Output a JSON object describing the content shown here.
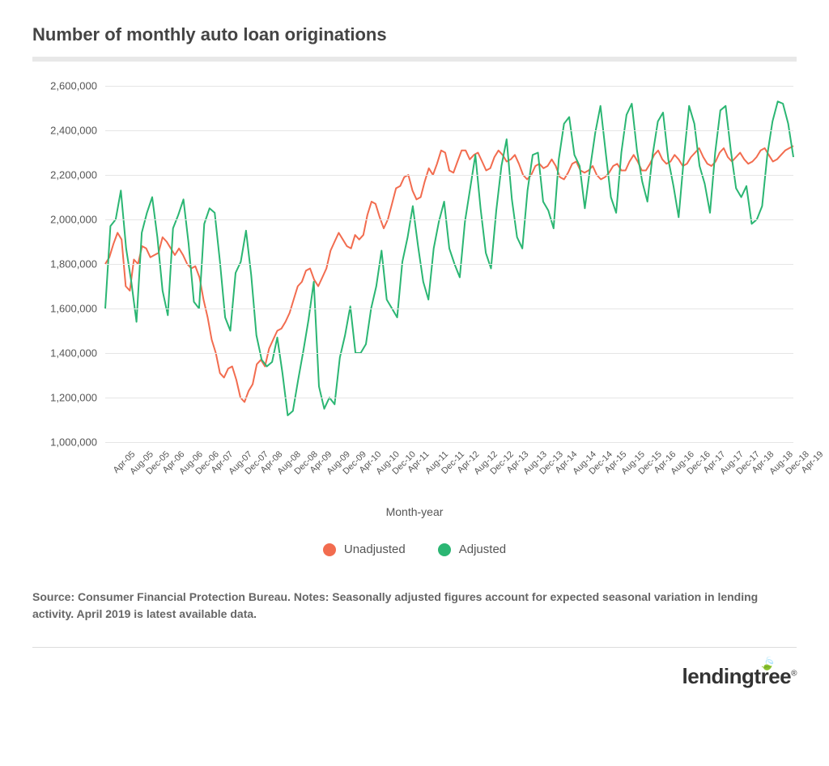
{
  "title": "Number of monthly auto loan originations",
  "chart": {
    "type": "line",
    "xlabel": "Month-year",
    "ylim": [
      1000000,
      2600000
    ],
    "ytick_step": 200000,
    "yticks": [
      1000000,
      1200000,
      1400000,
      1600000,
      1800000,
      2000000,
      2200000,
      2400000,
      2600000
    ],
    "ytick_labels": [
      "1,000,000",
      "1,200,000",
      "1,400,000",
      "1,600,000",
      "1,800,000",
      "2,000,000",
      "2,200,000",
      "2,400,000",
      "2,600,000"
    ],
    "x_categories": [
      "Apr-05",
      "Aug-05",
      "Dec-05",
      "Apr-06",
      "Aug-06",
      "Dec-06",
      "Apr-07",
      "Aug-07",
      "Dec-07",
      "Apr-08",
      "Aug-08",
      "Dec-08",
      "Apr-09",
      "Aug-09",
      "Dec-09",
      "Apr-10",
      "Aug-10",
      "Dec-10",
      "Apr-11",
      "Aug-11",
      "Dec-11",
      "Apr-12",
      "Aug-12",
      "Dec-12",
      "Apr-13",
      "Aug-13",
      "Dec-13",
      "Apr-14",
      "Aug-14",
      "Dec-14",
      "Apr-15",
      "Aug-15",
      "Dec-15",
      "Apr-16",
      "Aug-16",
      "Dec-16",
      "Apr-17",
      "Aug-17",
      "Dec-17",
      "Apr-18",
      "Aug-18",
      "Dec-18",
      "Apr-19"
    ],
    "background_color": "#ffffff",
    "grid_color": "#e5e5e5",
    "line_width": 2,
    "title_fontsize": 22,
    "label_fontsize": 14,
    "tick_fontsize": 13,
    "series": [
      {
        "name": "Unadjusted",
        "color": "#f26c4f",
        "values": [
          1800000,
          1830000,
          1890000,
          1940000,
          1910000,
          1700000,
          1680000,
          1820000,
          1800000,
          1880000,
          1870000,
          1830000,
          1840000,
          1850000,
          1920000,
          1900000,
          1870000,
          1840000,
          1870000,
          1840000,
          1800000,
          1780000,
          1790000,
          1740000,
          1640000,
          1560000,
          1460000,
          1400000,
          1310000,
          1290000,
          1330000,
          1340000,
          1280000,
          1200000,
          1180000,
          1230000,
          1260000,
          1350000,
          1370000,
          1340000,
          1420000,
          1460000,
          1500000,
          1510000,
          1540000,
          1580000,
          1640000,
          1700000,
          1720000,
          1770000,
          1780000,
          1730000,
          1700000,
          1740000,
          1780000,
          1860000,
          1900000,
          1940000,
          1910000,
          1880000,
          1870000,
          1930000,
          1910000,
          1930000,
          2020000,
          2080000,
          2070000,
          2010000,
          1960000,
          2000000,
          2070000,
          2140000,
          2150000,
          2190000,
          2200000,
          2130000,
          2090000,
          2100000,
          2170000,
          2230000,
          2200000,
          2250000,
          2310000,
          2300000,
          2220000,
          2210000,
          2260000,
          2310000,
          2310000,
          2270000,
          2290000,
          2300000,
          2260000,
          2220000,
          2230000,
          2280000,
          2310000,
          2290000,
          2260000,
          2270000,
          2290000,
          2250000,
          2200000,
          2180000,
          2200000,
          2240000,
          2250000,
          2230000,
          2240000,
          2270000,
          2240000,
          2190000,
          2180000,
          2210000,
          2250000,
          2260000,
          2220000,
          2210000,
          2220000,
          2240000,
          2200000,
          2180000,
          2190000,
          2210000,
          2240000,
          2250000,
          2220000,
          2220000,
          2260000,
          2290000,
          2260000,
          2220000,
          2220000,
          2250000,
          2290000,
          2310000,
          2270000,
          2250000,
          2260000,
          2290000,
          2270000,
          2240000,
          2250000,
          2280000,
          2300000,
          2320000,
          2280000,
          2250000,
          2240000,
          2260000,
          2300000,
          2320000,
          2280000,
          2260000,
          2280000,
          2300000,
          2270000,
          2250000,
          2260000,
          2280000,
          2310000,
          2320000,
          2290000,
          2260000,
          2270000,
          2290000,
          2310000,
          2320000,
          2330000
        ]
      },
      {
        "name": "Adjusted",
        "color": "#2bb673",
        "values": [
          1600000,
          1970000,
          2000000,
          2130000,
          1870000,
          1720000,
          1540000,
          1940000,
          2030000,
          2100000,
          1920000,
          1680000,
          1570000,
          1960000,
          2020000,
          2090000,
          1890000,
          1630000,
          1600000,
          1980000,
          2050000,
          2030000,
          1810000,
          1560000,
          1500000,
          1760000,
          1810000,
          1950000,
          1750000,
          1480000,
          1370000,
          1340000,
          1360000,
          1470000,
          1310000,
          1120000,
          1140000,
          1280000,
          1410000,
          1550000,
          1720000,
          1250000,
          1150000,
          1200000,
          1170000,
          1380000,
          1480000,
          1610000,
          1400000,
          1400000,
          1440000,
          1600000,
          1700000,
          1860000,
          1640000,
          1600000,
          1560000,
          1810000,
          1920000,
          2060000,
          1880000,
          1720000,
          1640000,
          1870000,
          1990000,
          2080000,
          1870000,
          1800000,
          1740000,
          1990000,
          2140000,
          2290000,
          2050000,
          1850000,
          1780000,
          2040000,
          2240000,
          2360000,
          2090000,
          1920000,
          1870000,
          2130000,
          2290000,
          2300000,
          2080000,
          2040000,
          1960000,
          2270000,
          2430000,
          2460000,
          2290000,
          2240000,
          2050000,
          2230000,
          2390000,
          2510000,
          2300000,
          2100000,
          2030000,
          2300000,
          2470000,
          2520000,
          2310000,
          2170000,
          2080000,
          2290000,
          2440000,
          2480000,
          2270000,
          2150000,
          2010000,
          2280000,
          2510000,
          2430000,
          2240000,
          2160000,
          2030000,
          2300000,
          2490000,
          2510000,
          2310000,
          2140000,
          2100000,
          2150000,
          1980000,
          2000000,
          2060000,
          2290000,
          2440000,
          2530000,
          2520000,
          2430000,
          2280000
        ]
      }
    ]
  },
  "legend": {
    "items": [
      {
        "label": "Unadjusted",
        "color": "#f26c4f"
      },
      {
        "label": "Adjusted",
        "color": "#2bb673"
      }
    ]
  },
  "source_note": "Source: Consumer Financial Protection Bureau. Notes: Seasonally adjusted figures account for expected seasonal variation in lending activity. April 2019 is latest available data.",
  "logo_text": "lendingtree"
}
